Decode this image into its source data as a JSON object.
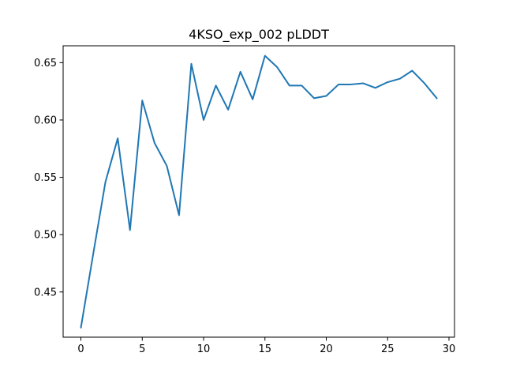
{
  "chart_data": {
    "type": "line",
    "title": "4KSO_exp_002 pLDDT",
    "xlabel": "",
    "ylabel": "",
    "xlim": [
      -1.45,
      30.45
    ],
    "ylim": [
      0.4106,
      0.6647
    ],
    "x_ticks": [
      0,
      5,
      10,
      15,
      20,
      25,
      30
    ],
    "y_ticks": [
      0.45,
      0.5,
      0.55,
      0.6,
      0.65
    ],
    "grid": false,
    "series": [
      {
        "color": "#1f77b4",
        "x": [
          0,
          1,
          2,
          3,
          4,
          5,
          6,
          7,
          8,
          9,
          10,
          11,
          12,
          13,
          14,
          15,
          16,
          17,
          18,
          19,
          20,
          21,
          22,
          23,
          24,
          25,
          26,
          27,
          28,
          29
        ],
        "values": [
          0.419,
          0.483,
          0.546,
          0.584,
          0.504,
          0.617,
          0.58,
          0.56,
          0.517,
          0.649,
          0.6,
          0.63,
          0.609,
          0.642,
          0.618,
          0.656,
          0.646,
          0.63,
          0.63,
          0.619,
          0.621,
          0.631,
          0.631,
          0.632,
          0.628,
          0.633,
          0.636,
          0.643,
          0.632,
          0.619
        ]
      }
    ]
  }
}
